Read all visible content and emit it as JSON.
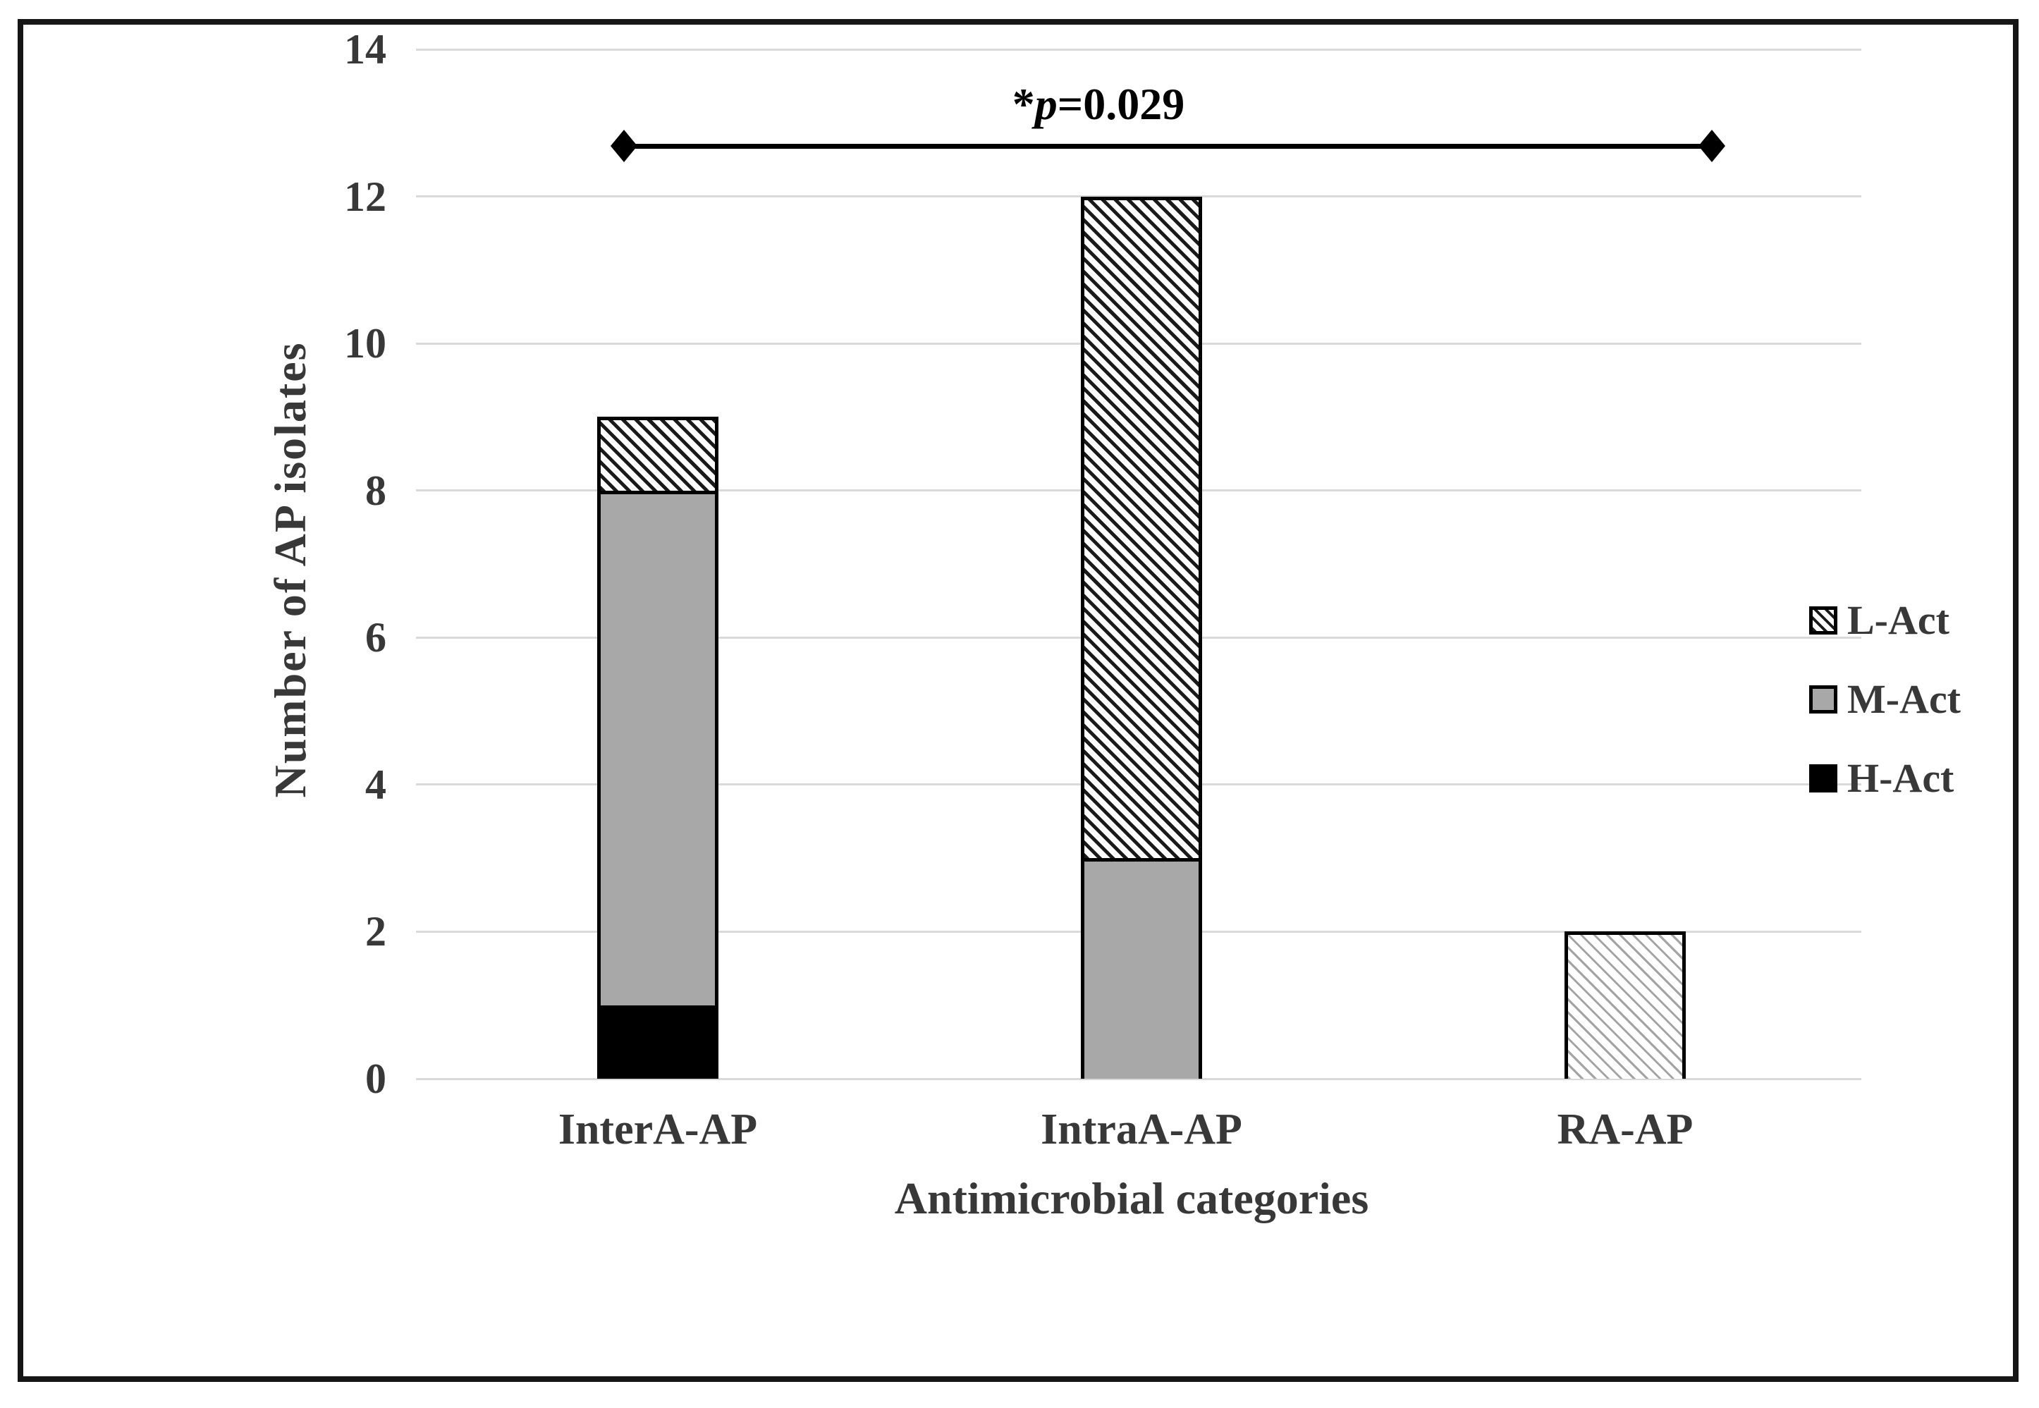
{
  "figure": {
    "kind": "stacked-bar-chart-figure"
  },
  "chart_data": {
    "type": "bar",
    "stacked": true,
    "categories": [
      "InterA-AP",
      "IntraA-AP",
      "RA-AP"
    ],
    "series": [
      {
        "name": "H-Act",
        "style": "solid-black",
        "values": [
          1,
          0,
          0
        ]
      },
      {
        "name": "M-Act",
        "style": "solid-gray",
        "values": [
          7,
          3,
          0
        ]
      },
      {
        "name": "L-Act",
        "style": "diagonal-hatch",
        "values": [
          1,
          9,
          2
        ]
      }
    ],
    "stack_order": "bottom-to-top",
    "totals": [
      9,
      12,
      2
    ],
    "xlabel": "Antimicrobial categories",
    "ylabel": "Number of AP isolates",
    "ylim": [
      0,
      14
    ],
    "yticks": [
      0,
      2,
      4,
      6,
      8,
      10,
      12,
      14
    ],
    "grid": "horizontal",
    "legend_position": "right-middle",
    "legend": [
      {
        "label": "L-Act",
        "pattern": "diagonal-hatch"
      },
      {
        "label": "M-Act",
        "pattern": "solid-gray"
      },
      {
        "label": "H-Act",
        "pattern": "solid-black"
      }
    ],
    "annotation": {
      "type": "significance-line",
      "full_text": "*p=0.029",
      "star": "*",
      "variable": "p",
      "rest": "=0.029",
      "connects": [
        "InterA-AP",
        "RA-AP"
      ],
      "marker": "diamond",
      "y_value": 12.7
    },
    "colors": {
      "background": "#ffffff",
      "border": "#161616",
      "gridline": "#d9d9d9",
      "text": "#383838",
      "annotation_text": "#000000",
      "bar_gray": "#a8a8a8",
      "bar_black": "#000000",
      "hatch_line": "#1a1a1a",
      "hatch_line_light": "#a3a3a3"
    }
  }
}
